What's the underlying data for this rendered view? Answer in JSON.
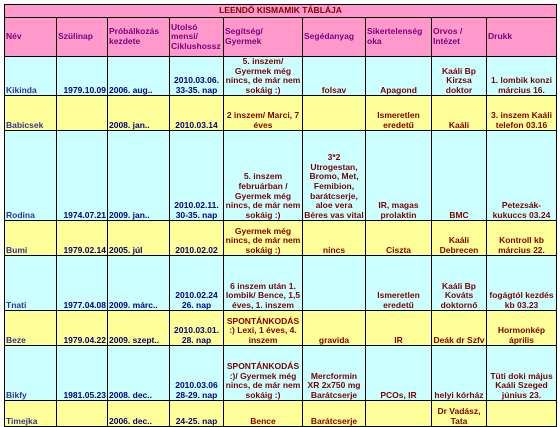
{
  "table": {
    "title": "LEENDŐ KISMAMIK TÁBLÁJA",
    "headers": [
      "Név",
      "Szülinap",
      "Próbálkozás kezdete",
      "Utolsó mensi/ Ciklushossz",
      "Segítség/ Gyermek",
      "Segédanyag",
      "Sikertelenség oka",
      "Orvos / Intézet",
      "Drukk"
    ],
    "rows": [
      [
        "Kikinda",
        "1979.10.09",
        "2006. aug..",
        "2010.03.06. 33-35. nap",
        "5. inszem/ Gyermek még nincs, de már nem sokáig :)",
        "folsav",
        "Apagond",
        "Kaáli Bp Kirzsa doktor",
        "1. lombik konzi március 16."
      ],
      [
        "Babicsek",
        null,
        "2008. jan..",
        "2010.03.14",
        "2 inszem/ Marci, 7 éves",
        null,
        "Ismeretlen eredetű",
        "Kaáli",
        "3. inszem Kaáli telefon 03.16"
      ],
      [
        "Rodina",
        "1974.07.21",
        "2009. jan..",
        "2010.02.11. 30-35. nap",
        "5. inszem februárban / Gyermek még nincs, de már nem sokáig :)",
        "3*2 Utrogestan, Bromo, Met, Femibion, barátcserje, aloe vera Béres vas vital",
        "IR, magas prolaktin",
        "BMC",
        "Petezsák-kukuccs 03.24"
      ],
      [
        "Bumi",
        "1979.02.14",
        "2005. júl",
        "2010.02.02",
        "Gyermek még nincs, de már nem sokáig :)",
        "nincs",
        "Ciszta",
        "Kaáli Debrecen",
        "Kontroll kb március 22."
      ],
      [
        "Tnati",
        "1977.04.08",
        "2009. márc..",
        "2010.02.24 26. nap",
        "6 inszem után 1. lombik/ Bence, 1,5 éves, 1. inszem",
        null,
        "Ismeretlen eredetű",
        "Kaáli Bp Kováts doktornő",
        "fogágtól kezdés kb 03.23"
      ],
      [
        "Beze",
        "1979.04.22",
        "2009. szept..",
        "2010.03.01. 28. nap",
        "SPONTÁNKODÁS :) Lexi, 1 éves, 4. inszem",
        "gravida",
        "IR",
        "Deák dr Szfv",
        "Hormonkép április"
      ],
      [
        "Bikfy",
        "1981.05.23",
        "2008. dec..",
        "2010.03.06 28-29. nap",
        "SPONTÁNKODÁS :)/ Gyermek még nincs, de már nem sokáig :)",
        "Mercformin XR 2x750 mg Barátcserje",
        "PCOs, IR",
        "helyi kórház",
        "Tüti doki május Kaáli Szeged június 23."
      ],
      [
        "Timejka",
        null,
        "2006. dec..",
        "24-25. nap",
        "Bence",
        "Barátcserje",
        null,
        "Dr Vadász, Tata",
        null
      ]
    ]
  }
}
